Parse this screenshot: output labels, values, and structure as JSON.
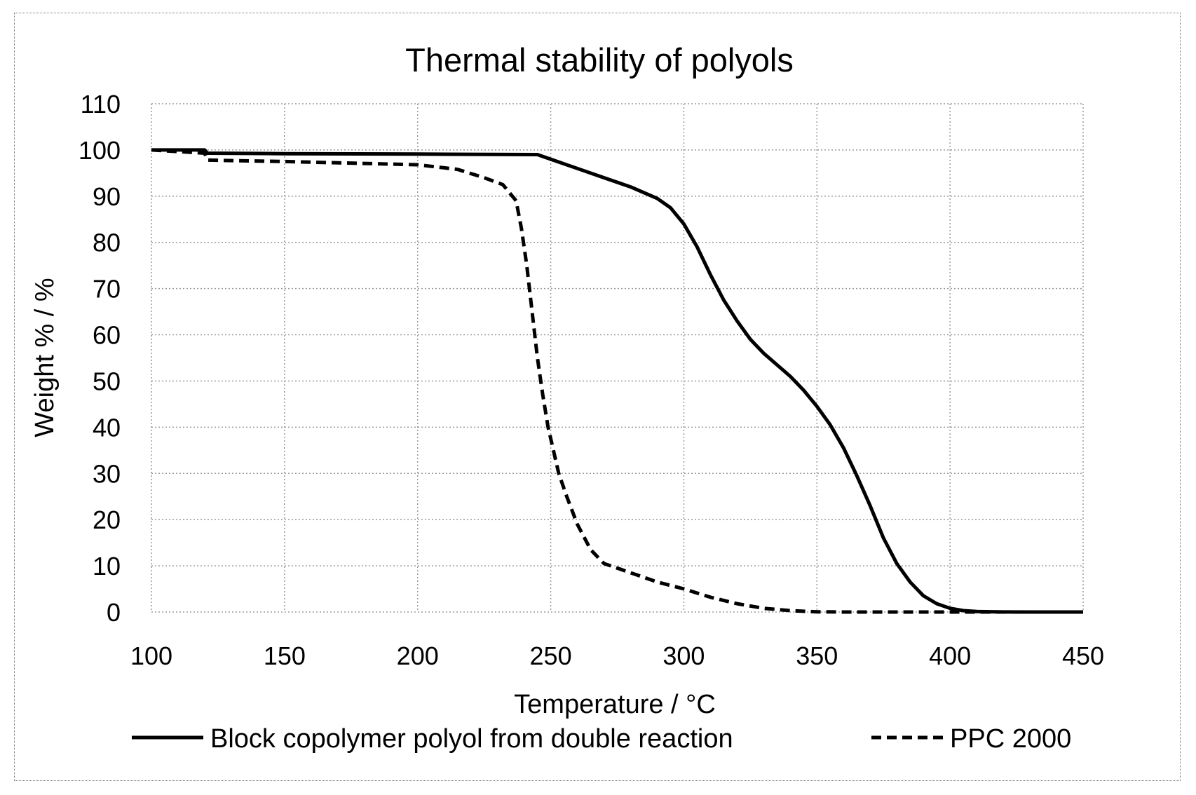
{
  "chart_data": {
    "type": "line",
    "title": "Thermal stability of polyols",
    "xlabel": "Temperature / °C",
    "ylabel": "Weight % / %",
    "xlim": [
      100,
      450
    ],
    "ylim": [
      0,
      110
    ],
    "x_ticks": [
      100,
      150,
      200,
      250,
      300,
      350,
      400,
      450
    ],
    "y_ticks": [
      0,
      10,
      20,
      30,
      40,
      50,
      60,
      70,
      80,
      90,
      100,
      110
    ],
    "x_tick_labels": [
      "100",
      "150",
      "200",
      "250",
      "300",
      "350",
      "400",
      "450"
    ],
    "y_tick_labels": [
      "0",
      "10",
      "20",
      "30",
      "40",
      "50",
      "60",
      "70",
      "80",
      "90",
      "100",
      "110"
    ],
    "grid": true,
    "legend_position": "bottom",
    "series": [
      {
        "name": "Block copolymer polyol from double reaction",
        "style": "solid",
        "color": "#000000",
        "x": [
          100,
          120,
          121,
          150,
          200,
          245,
          250,
          260,
          270,
          280,
          290,
          295,
          300,
          305,
          310,
          315,
          320,
          325,
          330,
          340,
          345,
          350,
          355,
          360,
          365,
          370,
          375,
          380,
          385,
          390,
          395,
          400,
          405,
          410,
          420,
          430,
          450
        ],
        "y": [
          100,
          100,
          99.3,
          99.2,
          99.1,
          99,
          98,
          96,
          94,
          92,
          89.5,
          87.5,
          84,
          79,
          73,
          67.5,
          63,
          59,
          56,
          51,
          48,
          44.5,
          40.5,
          35.5,
          29.5,
          23,
          16,
          10.5,
          6.5,
          3.5,
          1.8,
          0.8,
          0.3,
          0.1,
          0.02,
          0,
          0
        ]
      },
      {
        "name": "PPC 2000",
        "style": "dashed",
        "color": "#000000",
        "x": [
          100,
          120,
          121,
          150,
          200,
          215,
          225,
          232,
          237,
          239,
          241,
          243,
          245,
          247,
          249,
          251,
          253,
          256,
          260,
          265,
          270,
          275,
          280,
          290,
          300,
          310,
          320,
          330,
          340,
          350,
          360,
          400,
          450
        ],
        "y": [
          100,
          99.3,
          97.8,
          97.5,
          96.8,
          95.8,
          94,
          92.5,
          89,
          83,
          75,
          65,
          55,
          47,
          40,
          35,
          30,
          25,
          19,
          13.5,
          10.5,
          9.5,
          8.5,
          6.5,
          5,
          3.2,
          1.8,
          0.8,
          0.3,
          0.05,
          0,
          0,
          0
        ]
      }
    ]
  }
}
